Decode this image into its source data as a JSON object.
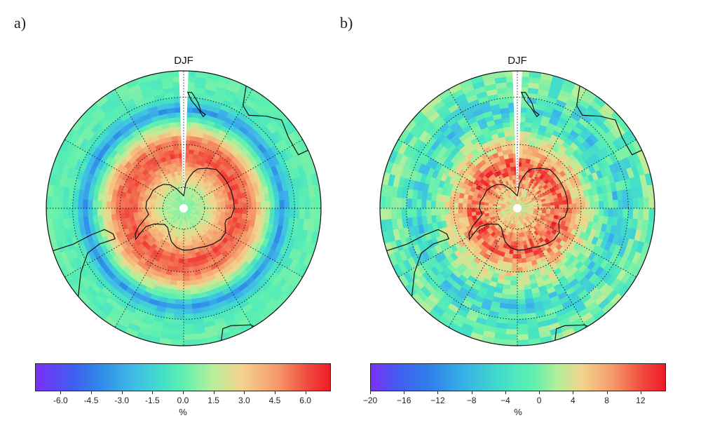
{
  "figure": {
    "panels": [
      {
        "id": "a",
        "label": "a)",
        "title": "DJF",
        "colorbar": {
          "ticks": [
            "-6.0",
            "-4.5",
            "-3.0",
            "-1.5",
            "0.0",
            "1.5",
            "3.0",
            "4.5",
            "6.0"
          ],
          "tick_values": [
            -6.0,
            -4.5,
            -3.0,
            -1.5,
            0.0,
            1.5,
            3.0,
            4.5,
            6.0
          ],
          "range": [
            -7.25,
            7.25
          ],
          "unit": "%"
        }
      },
      {
        "id": "b",
        "label": "b)",
        "title": "DJF",
        "colorbar": {
          "ticks": [
            "−20",
            "−16",
            "−12",
            "−8",
            "−4",
            "0",
            "4",
            "8",
            "12"
          ],
          "tick_values": [
            -20,
            -16,
            -12,
            -8,
            -4,
            0,
            4,
            8,
            12
          ],
          "range": [
            -20,
            15
          ],
          "unit": "%"
        }
      }
    ]
  },
  "chart_data": [
    {
      "type": "heatmap",
      "title": "DJF",
      "panel": "a)",
      "projection": "south polar stereographic",
      "unit": "%",
      "colorbar_range": [
        -7.25,
        7.25
      ],
      "zonal_pattern_by_latitude": [
        {
          "lat": -90,
          "value": 0.5
        },
        {
          "lat": -80,
          "value": 1.5
        },
        {
          "lat": -75,
          "value": 3.0
        },
        {
          "lat": -65,
          "value": 6.0
        },
        {
          "lat": -58,
          "value": 5.0
        },
        {
          "lat": -50,
          "value": 0.5
        },
        {
          "lat": -45,
          "value": -3.5
        },
        {
          "lat": -40,
          "value": -0.5
        },
        {
          "lat": -35,
          "value": 0.0
        }
      ]
    },
    {
      "type": "heatmap",
      "title": "DJF",
      "panel": "b)",
      "projection": "south polar stereographic",
      "unit": "%",
      "colorbar_range": [
        -20,
        15
      ],
      "zonal_pattern_by_latitude": [
        {
          "lat": -90,
          "value": 2
        },
        {
          "lat": -80,
          "value": 6
        },
        {
          "lat": -70,
          "value": 12
        },
        {
          "lat": -62,
          "value": 6
        },
        {
          "lat": -55,
          "value": 0
        },
        {
          "lat": -45,
          "value": -6
        },
        {
          "lat": -35,
          "value": -2
        }
      ]
    }
  ]
}
